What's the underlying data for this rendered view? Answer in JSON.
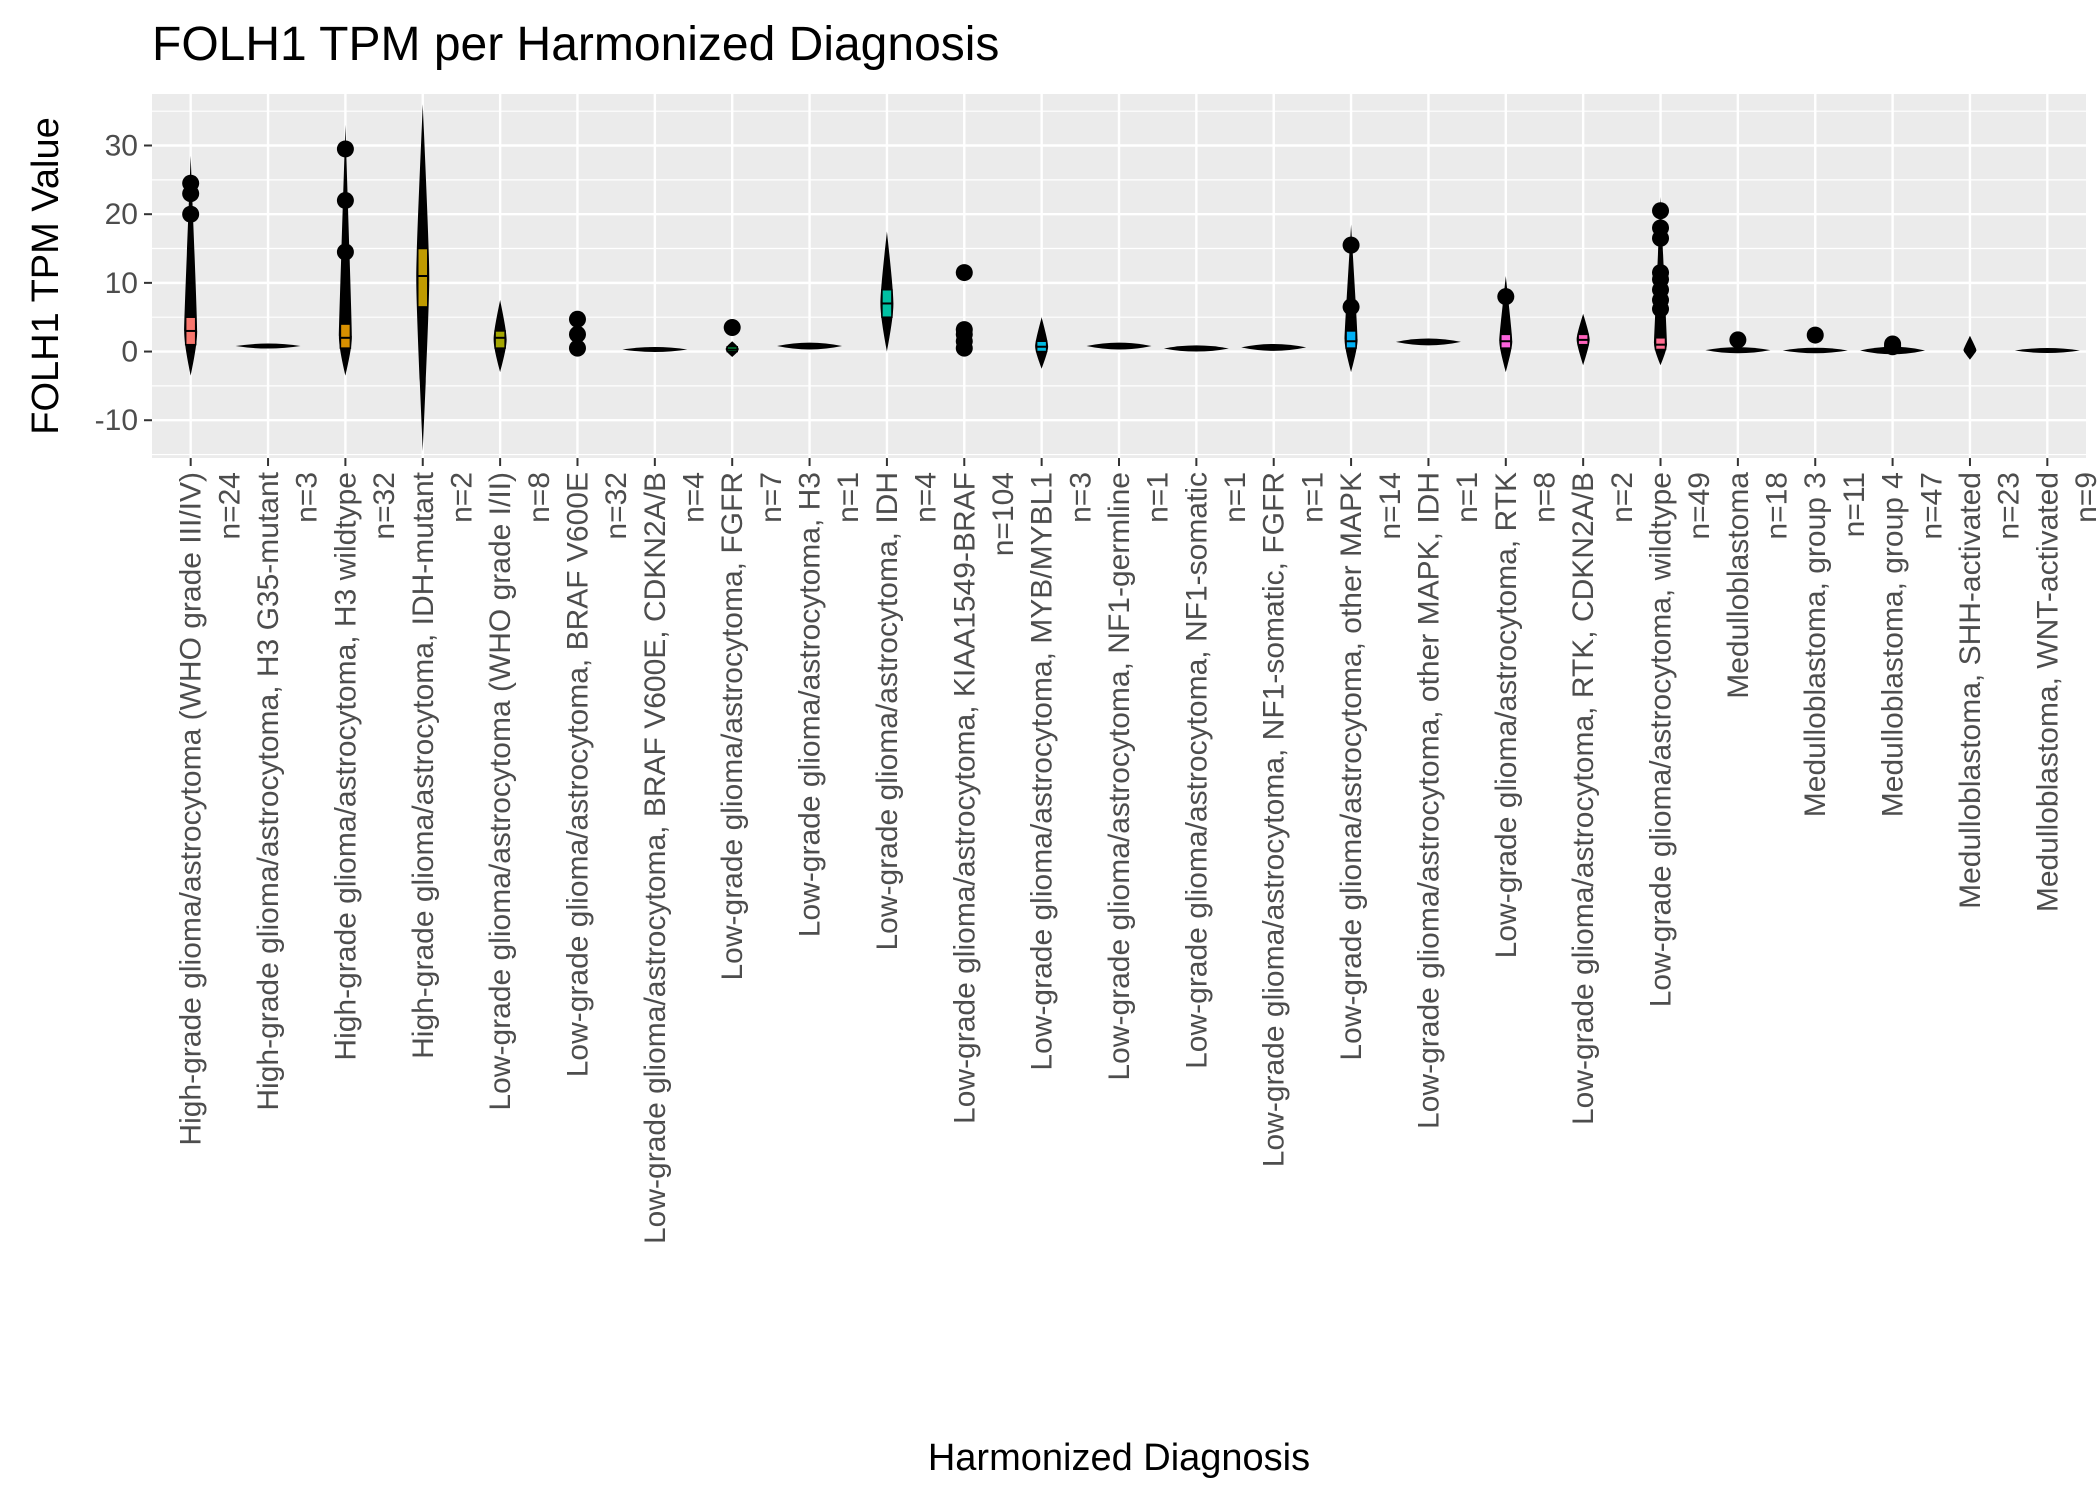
{
  "chart_data": {
    "type": "violin",
    "title": "FOLH1 TPM per Harmonized Diagnosis",
    "xlabel": "Harmonized Diagnosis",
    "ylabel": "FOLH1 TPM Value",
    "ylim": [
      -15.5,
      37.5
    ],
    "yticks": [
      -10,
      0,
      10,
      20,
      30
    ],
    "grid": true,
    "legend": "none",
    "colors": {
      "panel_bg": "#ebebeb",
      "grid": "#ffffff",
      "mark": "#000000",
      "text": "#000000",
      "tick_text": "#4d4d4d"
    },
    "categories": [
      {
        "label": "High-grade glioma/astrocytoma (WHO grade III/IV)",
        "n": "n=24",
        "ymin": -3.5,
        "ymax": 28.5,
        "q1": 1,
        "median": 3,
        "q3": 5,
        "whisk_lo": -0.5,
        "whisk_hi": 9,
        "outliers": [
          20.0,
          23.0,
          24.5
        ],
        "box_color": "#f8766d"
      },
      {
        "label": "High-grade glioma/astrocytoma, H3 G35-mutant",
        "n": "n=3",
        "ymin": 0.5,
        "ymax": 1.0,
        "q1": 0.7,
        "median": 0.8,
        "q3": 0.9,
        "whisk_lo": 0.6,
        "whisk_hi": 1.0,
        "outliers": [],
        "box_color": "#ea8331",
        "flat": true
      },
      {
        "label": "High-grade glioma/astrocytoma, H3 wildtype",
        "n": "n=32",
        "ymin": -3.5,
        "ymax": 33,
        "q1": 0.5,
        "median": 2,
        "q3": 4,
        "whisk_lo": -0.3,
        "whisk_hi": 8,
        "outliers": [
          14.5,
          22.0,
          29.5
        ],
        "box_color": "#d89000"
      },
      {
        "label": "High-grade glioma/astrocytoma, IDH-mutant",
        "n": "n=2",
        "ymin": -14.5,
        "ymax": 36,
        "q1": 6.5,
        "median": 11,
        "q3": 15,
        "whisk_lo": 4,
        "whisk_hi": 19,
        "outliers": [],
        "box_color": "#c09b00"
      },
      {
        "label": "Low-grade glioma/astrocytoma (WHO grade I/II)",
        "n": "n=8",
        "ymin": -3,
        "ymax": 7.5,
        "q1": 0.5,
        "median": 2,
        "q3": 3,
        "whisk_lo": 0,
        "whisk_hi": 4.5,
        "outliers": [],
        "box_color": "#a3a500"
      },
      {
        "label": "Low-grade glioma/astrocytoma, BRAF V600E",
        "n": "n=32",
        "ymin": -0.5,
        "ymax": 2,
        "q1": 0.2,
        "median": 0.5,
        "q3": 0.9,
        "whisk_lo": 0,
        "whisk_hi": 1.5,
        "outliers": [
          0.5,
          2.5,
          4.7
        ],
        "box_color": "#7cae00"
      },
      {
        "label": "Low-grade glioma/astrocytoma, BRAF V600E, CDKN2A/B",
        "n": "n=4",
        "ymin": 0.0,
        "ymax": 0.7,
        "q1": 0.2,
        "median": 0.3,
        "q3": 0.5,
        "whisk_lo": 0.1,
        "whisk_hi": 0.6,
        "outliers": [],
        "box_color": "#39b600",
        "flat": true
      },
      {
        "label": "Low-grade glioma/astrocytoma, FGFR",
        "n": "n=7",
        "ymin": -0.8,
        "ymax": 1.5,
        "q1": 0,
        "median": 0.3,
        "q3": 0.7,
        "whisk_lo": -0.3,
        "whisk_hi": 1.2,
        "outliers": [
          3.5
        ],
        "box_color": "#00bb4e"
      },
      {
        "label": "Low-grade glioma/astrocytoma, H3",
        "n": "n=1",
        "ymin": 0.3,
        "ymax": 1.3,
        "q1": 0.6,
        "median": 0.8,
        "q3": 1.0,
        "whisk_lo": 0.4,
        "whisk_hi": 1.2,
        "outliers": [],
        "box_color": "#00bf7d",
        "flat": true
      },
      {
        "label": "Low-grade glioma/astrocytoma, IDH",
        "n": "n=4",
        "ymin": 0,
        "ymax": 17.5,
        "q1": 5,
        "median": 7,
        "q3": 9,
        "whisk_lo": 2,
        "whisk_hi": 12,
        "outliers": [],
        "box_color": "#00c1a3"
      },
      {
        "label": "Low-grade glioma/astrocytoma, KIAA1549-BRAF",
        "n": "n=104",
        "ymin": -0.5,
        "ymax": 2,
        "q1": 0.2,
        "median": 0.6,
        "q3": 1.2,
        "whisk_lo": 0,
        "whisk_hi": 2,
        "outliers": [
          0.5,
          1.5,
          2.5,
          3.2,
          11.5
        ],
        "box_color": "#00bfc4"
      },
      {
        "label": "Low-grade glioma/astrocytoma, MYB/MYBL1",
        "n": "n=3",
        "ymin": -2.5,
        "ymax": 5,
        "q1": 0,
        "median": 0.7,
        "q3": 1.5,
        "whisk_lo": -0.5,
        "whisk_hi": 3,
        "outliers": [],
        "box_color": "#00bae0"
      },
      {
        "label": "Low-grade glioma/astrocytoma, NF1-germline",
        "n": "n=1",
        "ymin": 0.3,
        "ymax": 1.3,
        "q1": 0.6,
        "median": 0.8,
        "q3": 1.0,
        "whisk_lo": 0.4,
        "whisk_hi": 1.2,
        "outliers": [],
        "box_color": "#00b0f6",
        "flat": true
      },
      {
        "label": "Low-grade glioma/astrocytoma, NF1-somatic",
        "n": "n=1",
        "ymin": 0.0,
        "ymax": 0.9,
        "q1": 0.3,
        "median": 0.45,
        "q3": 0.6,
        "whisk_lo": 0.1,
        "whisk_hi": 0.8,
        "outliers": [],
        "box_color": "#35a2ff",
        "flat": true
      },
      {
        "label": "Low-grade glioma/astrocytoma, NF1-somatic, FGFR",
        "n": "n=1",
        "ymin": 0.1,
        "ymax": 1.1,
        "q1": 0.4,
        "median": 0.6,
        "q3": 0.8,
        "whisk_lo": 0.2,
        "whisk_hi": 1.0,
        "outliers": [],
        "box_color": "#9590ff",
        "flat": true
      },
      {
        "label": "Low-grade glioma/astrocytoma, other MAPK",
        "n": "n=14",
        "ymin": -3,
        "ymax": 18.5,
        "q1": 0.5,
        "median": 1.5,
        "q3": 3,
        "whisk_lo": -0.5,
        "whisk_hi": 6,
        "outliers": [
          6.5,
          15.5
        ],
        "box_color": "#00b0f6"
      },
      {
        "label": "Low-grade glioma/astrocytoma, other MAPK, IDH",
        "n": "n=1",
        "ymin": 0.9,
        "ymax": 1.9,
        "q1": 1.2,
        "median": 1.4,
        "q3": 1.6,
        "whisk_lo": 1.0,
        "whisk_hi": 1.8,
        "outliers": [],
        "box_color": "#e76bf3",
        "flat": true
      },
      {
        "label": "Low-grade glioma/astrocytoma, RTK",
        "n": "n=8",
        "ymin": -3,
        "ymax": 11,
        "q1": 0.5,
        "median": 1.5,
        "q3": 2.5,
        "whisk_lo": 0,
        "whisk_hi": 5,
        "outliers": [
          8.0
        ],
        "box_color": "#fa62db"
      },
      {
        "label": "Low-grade glioma/astrocytoma, RTK, CDKN2A/B",
        "n": "n=2",
        "ymin": -2,
        "ymax": 5.5,
        "q1": 1,
        "median": 1.7,
        "q3": 2.5,
        "whisk_lo": 0,
        "whisk_hi": 3.5,
        "outliers": [],
        "box_color": "#ff62bc"
      },
      {
        "label": "Low-grade glioma/astrocytoma, wildtype",
        "n": "n=49",
        "ymin": -2,
        "ymax": 22.5,
        "q1": 0.3,
        "median": 1,
        "q3": 2,
        "whisk_lo": -0.3,
        "whisk_hi": 5,
        "outliers": [
          6.2,
          7.5,
          9.0,
          10.5,
          11.5,
          16.5,
          18.0,
          20.5
        ],
        "box_color": "#ff6c91"
      },
      {
        "label": "Medulloblastoma",
        "n": "n=18",
        "ymin": -0.2,
        "ymax": 0.7,
        "q1": 0.1,
        "median": 0.2,
        "q3": 0.35,
        "whisk_lo": 0,
        "whisk_hi": 0.6,
        "outliers": [
          1.7
        ],
        "box_color": "#f8766d",
        "flat": true
      },
      {
        "label": "Medulloblastoma, group 3",
        "n": "n=11",
        "ymin": -0.2,
        "ymax": 0.6,
        "q1": 0.05,
        "median": 0.15,
        "q3": 0.3,
        "whisk_lo": 0,
        "whisk_hi": 0.5,
        "outliers": [
          2.4
        ],
        "box_color": "#d89000",
        "flat": true
      },
      {
        "label": "Medulloblastoma, group 4",
        "n": "n=47",
        "ymin": -0.3,
        "ymax": 0.8,
        "q1": 0.05,
        "median": 0.15,
        "q3": 0.3,
        "whisk_lo": 0,
        "whisk_hi": 0.6,
        "outliers": [
          0.7,
          0.9,
          1.1
        ],
        "box_color": "#a3a500",
        "flat": true
      },
      {
        "label": "Medulloblastoma, SHH-activated",
        "n": "n=23",
        "ymin": -1.2,
        "ymax": 2.3,
        "q1": 0,
        "median": 0.2,
        "q3": 0.4,
        "whisk_lo": -0.2,
        "whisk_hi": 1,
        "outliers": [],
        "box_color": "#39b600"
      },
      {
        "label": "Medulloblastoma, WNT-activated",
        "n": "n=9",
        "ymin": -0.2,
        "ymax": 0.5,
        "q1": 0.05,
        "median": 0.15,
        "q3": 0.25,
        "whisk_lo": 0,
        "whisk_hi": 0.4,
        "outliers": [],
        "box_color": "#00bfc4",
        "flat": true
      }
    ]
  }
}
